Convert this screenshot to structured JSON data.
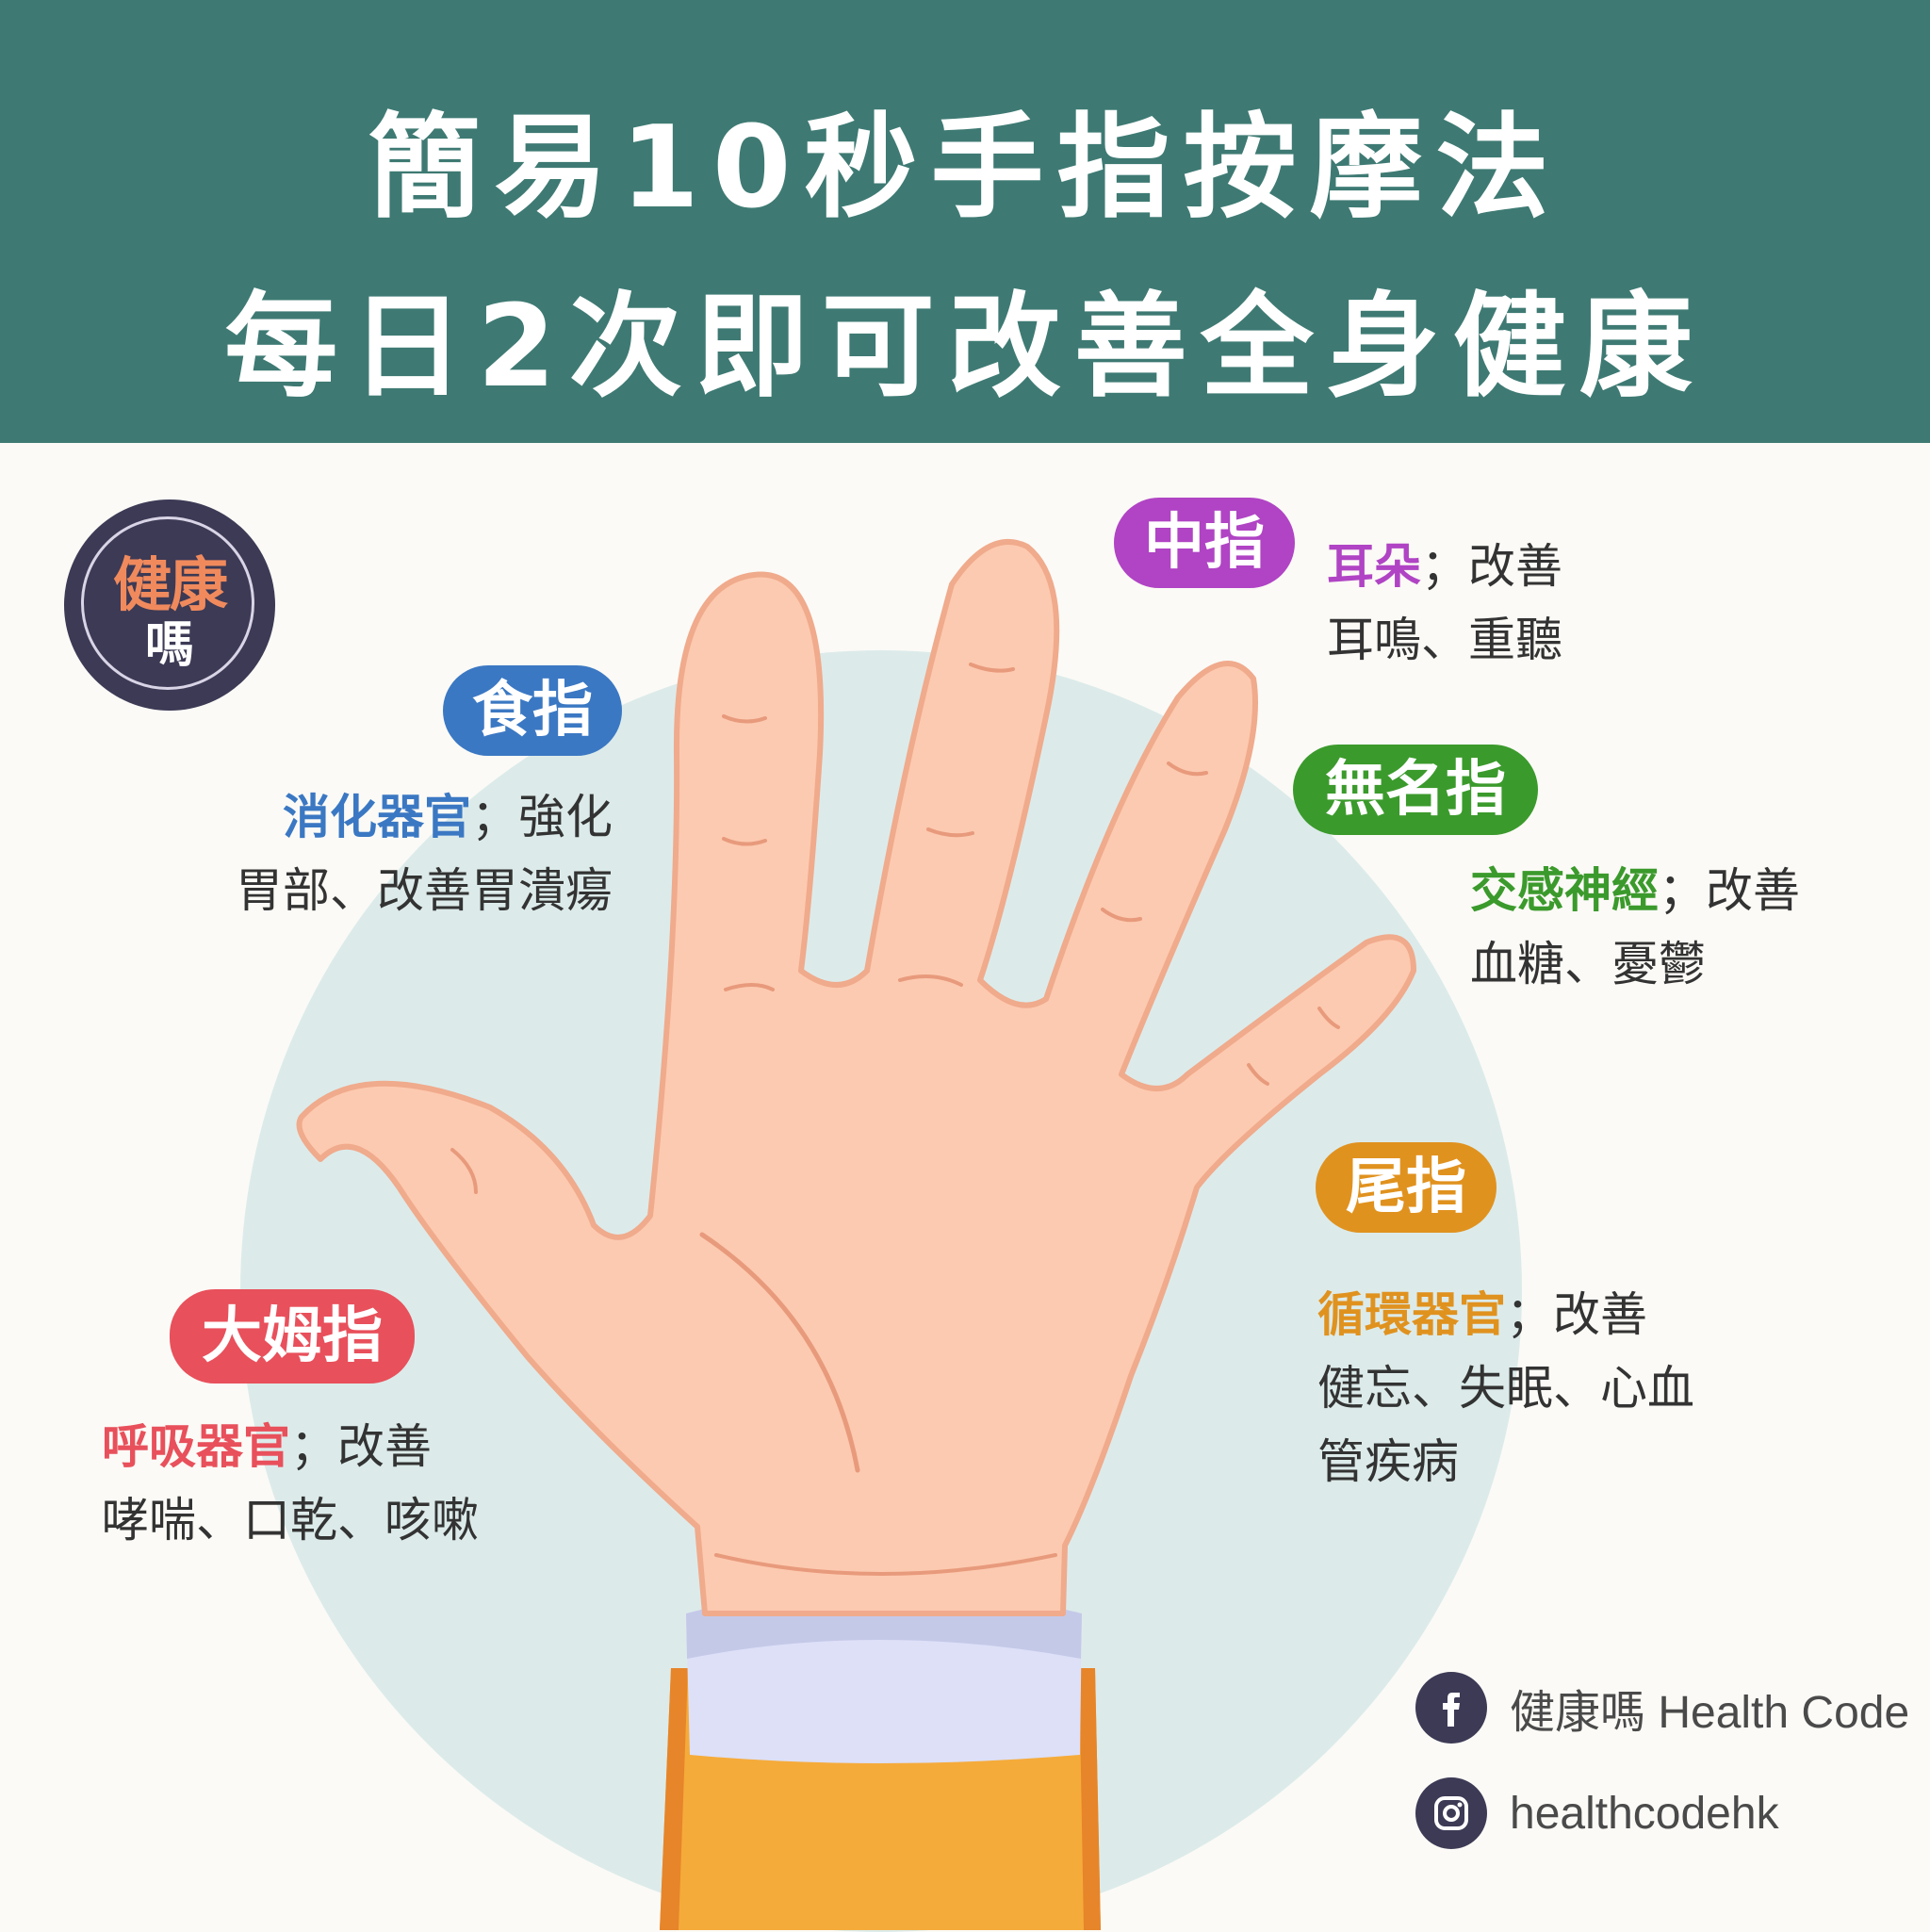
{
  "header": {
    "line1": "簡易10秒手指按摩法",
    "line2": "每日2次即可改善全身健康"
  },
  "logo": {
    "line1": "健康",
    "line2": "嗎"
  },
  "fingers": {
    "index": {
      "label": "食指",
      "keyword": "消化器官",
      "sep": "；強化",
      "line2": "胃部、改善胃潰瘍",
      "color": "#3b78c3"
    },
    "middle": {
      "label": "中指",
      "keyword": "耳朵",
      "sep": "；改善",
      "line2": "耳鳴、重聽",
      "color": "#b044c4"
    },
    "ring": {
      "label": "無名指",
      "keyword": "交感神經",
      "sep": "；改善",
      "line2": "血糖、憂鬱",
      "color": "#3b9a2c"
    },
    "little": {
      "label": "尾指",
      "keyword": "循環器官",
      "sep": "；改善",
      "line2": "健忘、失眠、心血",
      "line3": "管疾病",
      "color": "#e0921f"
    },
    "thumb": {
      "label": "大姆指",
      "keyword": "呼吸器官",
      "sep": "；改善",
      "line2": "哮喘、口乾、咳嗽",
      "color": "#e8505b"
    }
  },
  "social": {
    "facebook": {
      "icon": "facebook-icon",
      "text": "健康嗎 Health Code"
    },
    "instagram": {
      "icon": "instagram-icon",
      "text": "healthcodehk"
    }
  },
  "colors": {
    "header_bg": "#3e7a73",
    "skin": "#fccab0",
    "skin_outline": "#f0aa8c",
    "sleeve": "#f5ab3a",
    "cuff": "#dde0f7"
  }
}
